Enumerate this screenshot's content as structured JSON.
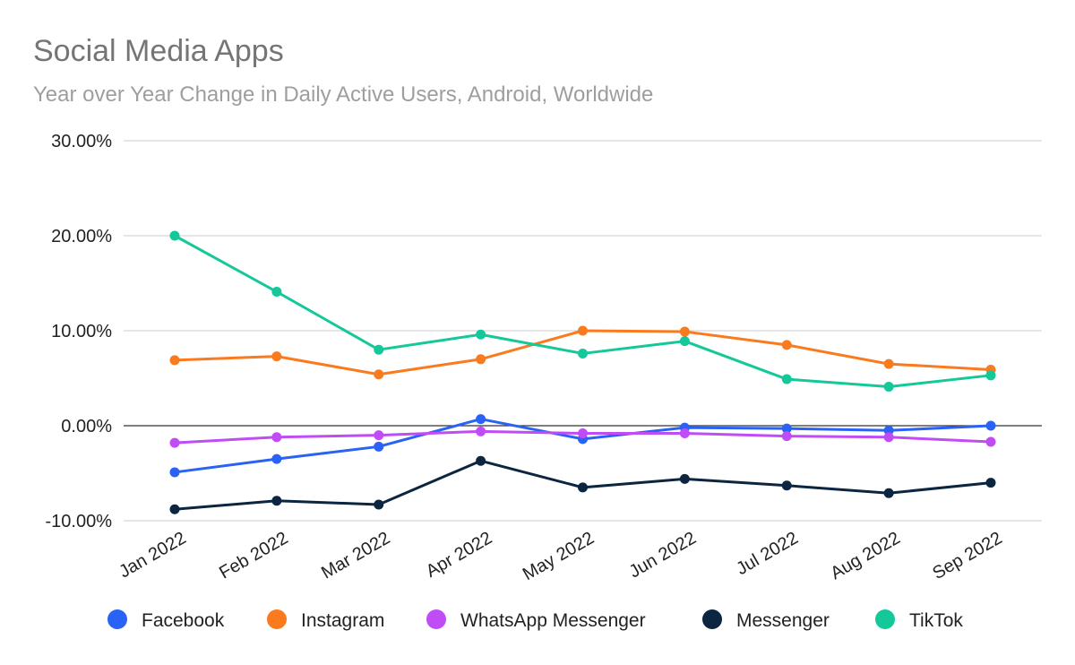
{
  "chart_data": {
    "type": "line",
    "title": "Social Media Apps",
    "subtitle": "Year over Year Change in Daily Active Users, Android, Worldwide",
    "xlabel": "",
    "ylabel": "",
    "categories": [
      "Jan 2022",
      "Feb 2022",
      "Mar 2022",
      "Apr 2022",
      "May 2022",
      "Jun 2022",
      "Jul 2022",
      "Aug 2022",
      "Sep 2022"
    ],
    "ylim": [
      -10,
      30
    ],
    "yticks": [
      -10,
      0,
      10,
      20,
      30
    ],
    "ytick_labels": [
      "-10.00%",
      "0.00%",
      "10.00%",
      "20.00%",
      "30.00%"
    ],
    "grid": true,
    "legend_position": "bottom",
    "series": [
      {
        "name": "Facebook",
        "color": "#2962f5",
        "values": [
          -4.9,
          -3.5,
          -2.2,
          0.7,
          -1.4,
          -0.2,
          -0.3,
          -0.5,
          0.0
        ]
      },
      {
        "name": "Instagram",
        "color": "#fa7a1e",
        "values": [
          6.9,
          7.3,
          5.4,
          7.0,
          10.0,
          9.9,
          8.5,
          6.5,
          5.9
        ]
      },
      {
        "name": "WhatsApp Messenger",
        "color": "#c04cf6",
        "values": [
          -1.8,
          -1.2,
          -1.0,
          -0.6,
          -0.8,
          -0.8,
          -1.1,
          -1.2,
          -1.7
        ]
      },
      {
        "name": "Messenger",
        "color": "#0c2540",
        "values": [
          -8.8,
          -7.9,
          -8.3,
          -3.7,
          -6.5,
          -5.6,
          -6.3,
          -7.1,
          -6.0
        ]
      },
      {
        "name": "TikTok",
        "color": "#14c89a",
        "values": [
          20.0,
          14.1,
          8.0,
          9.6,
          7.6,
          8.9,
          4.9,
          4.1,
          5.3
        ]
      }
    ]
  }
}
